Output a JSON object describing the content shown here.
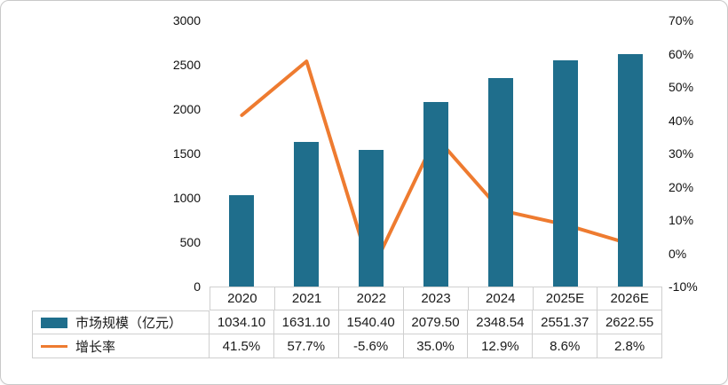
{
  "chart_data": {
    "type": "combo",
    "title": "",
    "categories": [
      "2020",
      "2021",
      "2022",
      "2023",
      "2024",
      "2025E",
      "2026E"
    ],
    "series": [
      {
        "name": "市场规模（亿元）",
        "type": "bar",
        "axis": "left",
        "color": "#1f6e8c",
        "values": [
          1034.1,
          1631.1,
          1540.4,
          2079.5,
          2348.54,
          2551.37,
          2622.55
        ]
      },
      {
        "name": "增长率",
        "type": "line",
        "axis": "right",
        "color": "#ee7b30",
        "values": [
          41.5,
          57.7,
          -5.6,
          35.0,
          12.9,
          8.6,
          2.8
        ]
      }
    ],
    "left_axis": {
      "min": 0,
      "max": 3000,
      "step": 500,
      "tick_labels": [
        "3000",
        "2500",
        "2000",
        "1500",
        "1000",
        "500",
        "0"
      ]
    },
    "right_axis": {
      "min": -10,
      "max": 70,
      "step": 10,
      "tick_labels": [
        "70%",
        "60%",
        "50%",
        "40%",
        "30%",
        "20%",
        "10%",
        "0%",
        "-10%"
      ]
    },
    "grid": false,
    "legend_position": "data-table-left"
  },
  "data_table": {
    "category_row": [
      "2020",
      "2021",
      "2022",
      "2023",
      "2024",
      "2025E",
      "2026E"
    ],
    "rows": [
      {
        "label": "市场规模（亿元）",
        "swatch": "bar-legend-swatch",
        "swatch_color": "#1f6e8c",
        "values": [
          "1034.10",
          "1631.10",
          "1540.40",
          "2079.50",
          "2348.54",
          "2551.37",
          "2622.55"
        ]
      },
      {
        "label": "增长率",
        "swatch": "line-legend-swatch",
        "swatch_color": "#ee7b30",
        "values": [
          "41.5%",
          "57.7%",
          "-5.6%",
          "35.0%",
          "12.9%",
          "8.6%",
          "2.8%"
        ]
      }
    ]
  }
}
